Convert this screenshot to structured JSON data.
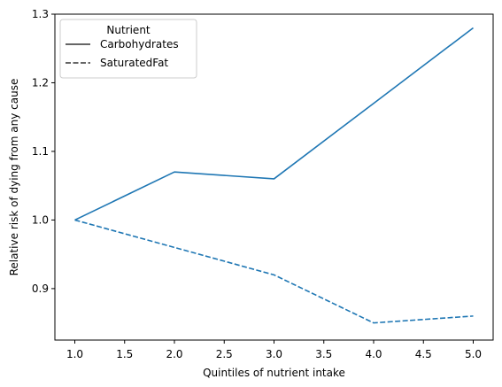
{
  "chart_data": {
    "type": "line",
    "title": "",
    "xlabel": "Quintiles of nutrient intake",
    "ylabel": "Relative risk of dying from any cause",
    "xlim": [
      0.8,
      5.2
    ],
    "ylim": [
      0.825,
      1.3
    ],
    "xticks": [
      1.0,
      1.5,
      2.0,
      2.5,
      3.0,
      3.5,
      4.0,
      4.5,
      5.0
    ],
    "xtick_labels": [
      "1.0",
      "1.5",
      "2.0",
      "2.5",
      "3.0",
      "3.5",
      "4.0",
      "4.5",
      "5.0"
    ],
    "yticks": [
      0.9,
      1.0,
      1.1,
      1.2,
      1.3
    ],
    "ytick_labels": [
      "0.9",
      "1.0",
      "1.1",
      "1.2",
      "1.3"
    ],
    "grid": false,
    "legend": {
      "title": "Nutrient",
      "placement": "top-left"
    },
    "series": [
      {
        "name": "Carbohydrates",
        "linestyle": "solid",
        "color": "#1f77b4",
        "x": [
          1,
          2,
          3,
          4,
          5
        ],
        "values": [
          1.0,
          1.07,
          1.06,
          1.17,
          1.28
        ]
      },
      {
        "name": "SaturatedFat",
        "linestyle": "dashed",
        "color": "#1f77b4",
        "x": [
          1,
          2,
          3,
          4,
          5
        ],
        "values": [
          1.0,
          0.96,
          0.92,
          0.85,
          0.86
        ]
      }
    ]
  }
}
